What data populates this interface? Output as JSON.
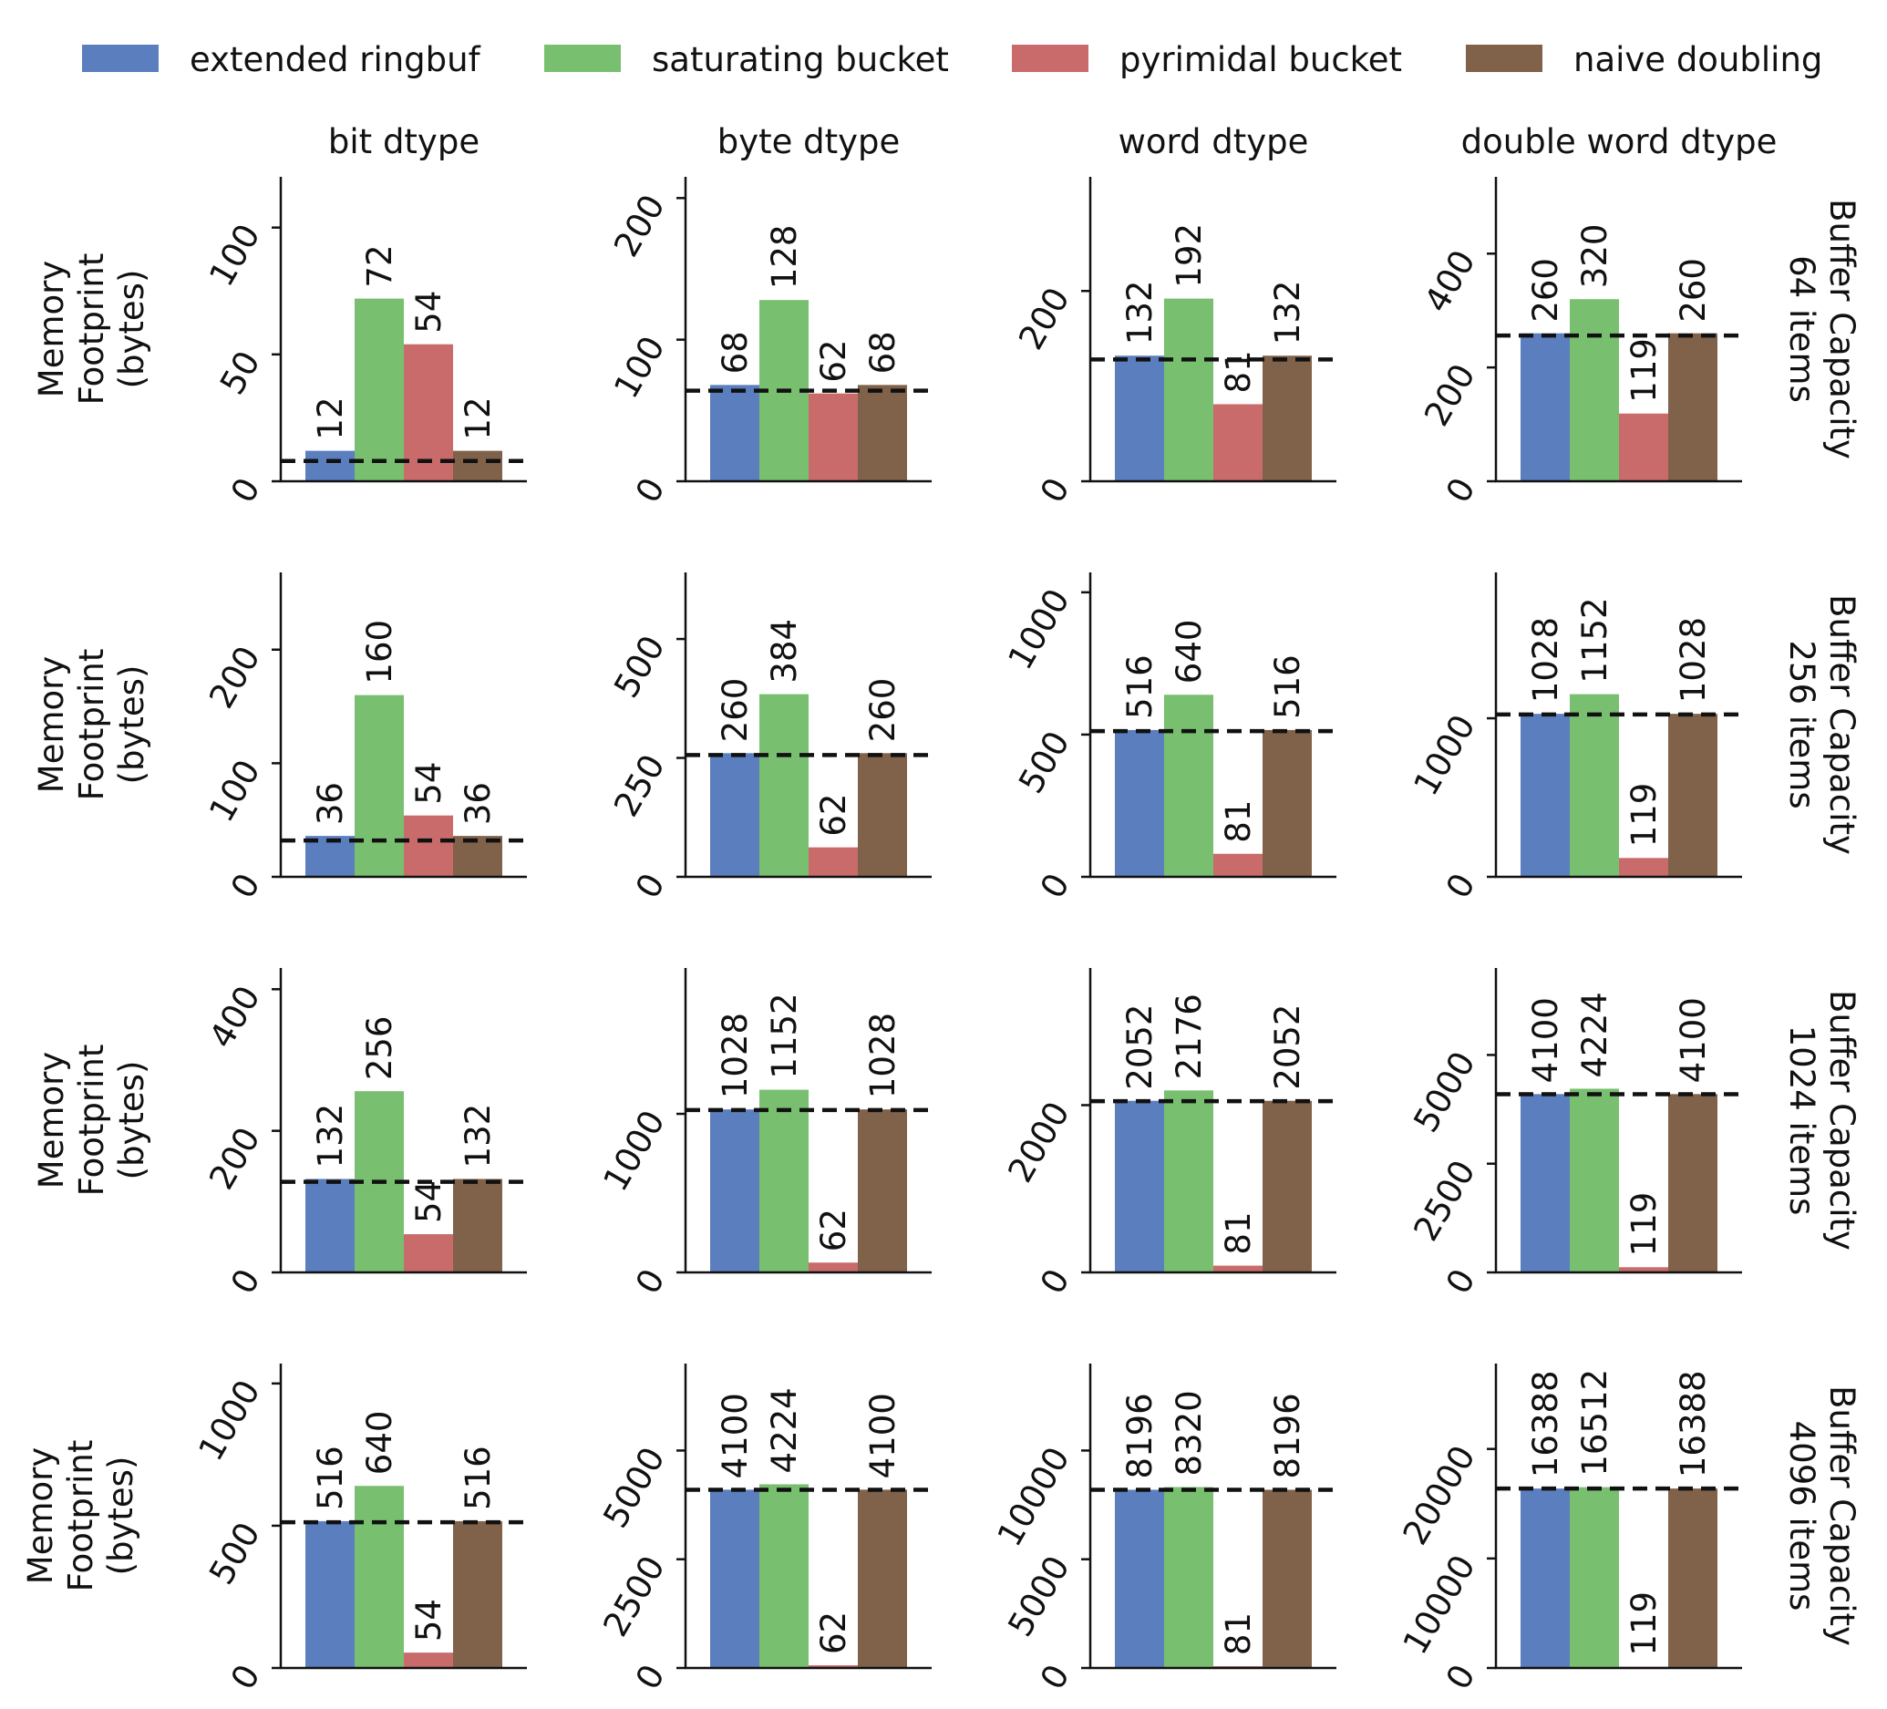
{
  "legend": [
    {
      "label": "extended ringbuf",
      "color": "#5b7ebf"
    },
    {
      "label": "saturating bucket",
      "color": "#78c070"
    },
    {
      "label": "pyrimidal bucket",
      "color": "#c96b6b"
    },
    {
      "label": "naive doubling",
      "color": "#80614a"
    }
  ],
  "column_titles": [
    "bit dtype",
    "byte dtype",
    "word dtype",
    "double word dtype"
  ],
  "row_labels": [
    "Buffer Capacity\n64 items",
    "Buffer Capacity\n256 items",
    "Buffer Capacity\n1024 items",
    "Buffer Capacity\n4096 items"
  ],
  "ylabel": "Memory\nFootprint\n(bytes)",
  "chart_data": {
    "type": "bar",
    "layout": "facet-grid",
    "series_names": [
      "extended ringbuf",
      "saturating bucket",
      "pyrimidal bucket",
      "naive doubling"
    ],
    "legend_position": "top",
    "grid": false,
    "reference_line": "dashed",
    "panels": [
      {
        "row": 0,
        "col": 0,
        "values": [
          12,
          72,
          54,
          12
        ],
        "reference": 8,
        "ylim": [
          0,
          120
        ],
        "yticks": [
          0,
          50,
          100
        ]
      },
      {
        "row": 0,
        "col": 1,
        "values": [
          68,
          128,
          62,
          68
        ],
        "reference": 64,
        "ylim": [
          0,
          215
        ],
        "yticks": [
          0,
          100,
          200
        ]
      },
      {
        "row": 0,
        "col": 2,
        "values": [
          132,
          192,
          81,
          132
        ],
        "reference": 128,
        "ylim": [
          0,
          320
        ],
        "yticks": [
          0,
          200
        ]
      },
      {
        "row": 0,
        "col": 3,
        "values": [
          260,
          320,
          119,
          260
        ],
        "reference": 256,
        "ylim": [
          0,
          535
        ],
        "yticks": [
          0,
          200,
          400
        ]
      },
      {
        "row": 1,
        "col": 0,
        "values": [
          36,
          160,
          54,
          36
        ],
        "reference": 32,
        "ylim": [
          0,
          268
        ],
        "yticks": [
          0,
          100,
          200
        ]
      },
      {
        "row": 1,
        "col": 1,
        "values": [
          260,
          384,
          62,
          260
        ],
        "reference": 256,
        "ylim": [
          0,
          640
        ],
        "yticks": [
          0,
          250,
          500
        ]
      },
      {
        "row": 1,
        "col": 2,
        "values": [
          516,
          640,
          81,
          516
        ],
        "reference": 512,
        "ylim": [
          0,
          1070
        ],
        "yticks": [
          0,
          500,
          1000
        ]
      },
      {
        "row": 1,
        "col": 3,
        "values": [
          1028,
          1152,
          119,
          1028
        ],
        "reference": 1024,
        "ylim": [
          0,
          1920
        ],
        "yticks": [
          0,
          1000
        ]
      },
      {
        "row": 2,
        "col": 0,
        "values": [
          132,
          256,
          54,
          132
        ],
        "reference": 128,
        "ylim": [
          0,
          430
        ],
        "yticks": [
          0,
          200,
          400
        ]
      },
      {
        "row": 2,
        "col": 1,
        "values": [
          1028,
          1152,
          62,
          1028
        ],
        "reference": 1024,
        "ylim": [
          0,
          1920
        ],
        "yticks": [
          0,
          1000
        ]
      },
      {
        "row": 2,
        "col": 2,
        "values": [
          2052,
          2176,
          81,
          2052
        ],
        "reference": 2048,
        "ylim": [
          0,
          3640
        ],
        "yticks": [
          0,
          2000
        ]
      },
      {
        "row": 2,
        "col": 3,
        "values": [
          4100,
          4224,
          119,
          4100
        ],
        "reference": 4096,
        "ylim": [
          0,
          7000
        ],
        "yticks": [
          0,
          2500,
          5000
        ]
      },
      {
        "row": 3,
        "col": 0,
        "values": [
          516,
          640,
          54,
          516
        ],
        "reference": 512,
        "ylim": [
          0,
          1070
        ],
        "yticks": [
          0,
          500,
          1000
        ]
      },
      {
        "row": 3,
        "col": 1,
        "values": [
          4100,
          4224,
          62,
          4100
        ],
        "reference": 4096,
        "ylim": [
          0,
          7000
        ],
        "yticks": [
          0,
          2500,
          5000
        ]
      },
      {
        "row": 3,
        "col": 2,
        "values": [
          8196,
          8320,
          81,
          8196
        ],
        "reference": 8192,
        "ylim": [
          0,
          14000
        ],
        "yticks": [
          0,
          5000,
          10000
        ]
      },
      {
        "row": 3,
        "col": 3,
        "values": [
          16388,
          16512,
          119,
          16388
        ],
        "reference": 16384,
        "ylim": [
          0,
          27800
        ],
        "yticks": [
          0,
          10000,
          20000
        ]
      }
    ]
  }
}
